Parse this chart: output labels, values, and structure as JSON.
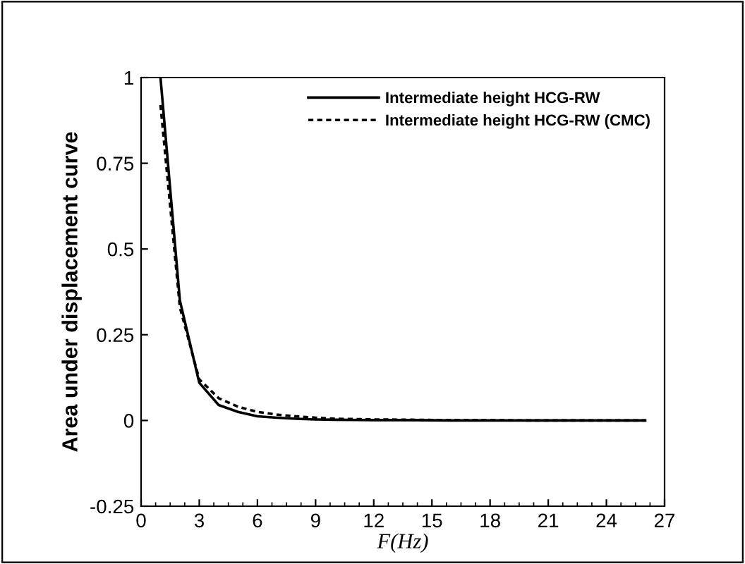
{
  "chart_data": {
    "type": "line",
    "xlabel": "F(Hz)",
    "ylabel": "Area under displacement curve",
    "xlim": [
      0,
      27
    ],
    "xticks": [
      0,
      3,
      6,
      9,
      12,
      15,
      18,
      21,
      24,
      27
    ],
    "ylim": [
      -0.25,
      1
    ],
    "yticks": [
      -0.25,
      0,
      0.25,
      0.5,
      0.75,
      1
    ],
    "legend": "top right",
    "grid": false,
    "series": [
      {
        "name": "Intermediate height HCG-RW",
        "color": "#000000",
        "line_style": "solid",
        "x": [
          1,
          2,
          3,
          4,
          5,
          6,
          7,
          8,
          9,
          10,
          12,
          14,
          16,
          18,
          20,
          22,
          24,
          26
        ],
        "values": [
          1,
          0.35,
          0.11,
          0.045,
          0.025,
          0.012,
          0.008,
          0.005,
          0.003,
          0.002,
          0.001,
          0.001,
          0,
          0,
          0,
          0,
          0,
          0
        ]
      },
      {
        "name": "Intermediate height HCG-RW (CMC)",
        "color": "#000000",
        "line_style": "dashed",
        "x": [
          1,
          2,
          3,
          4,
          5,
          6,
          7,
          8,
          9,
          10,
          12,
          14,
          16,
          18,
          20,
          22,
          24,
          26
        ],
        "values": [
          0.92,
          0.33,
          0.12,
          0.065,
          0.04,
          0.025,
          0.017,
          0.012,
          0.008,
          0.005,
          0.003,
          0.002,
          0.001,
          0.001,
          0,
          0,
          0,
          0
        ]
      }
    ]
  }
}
